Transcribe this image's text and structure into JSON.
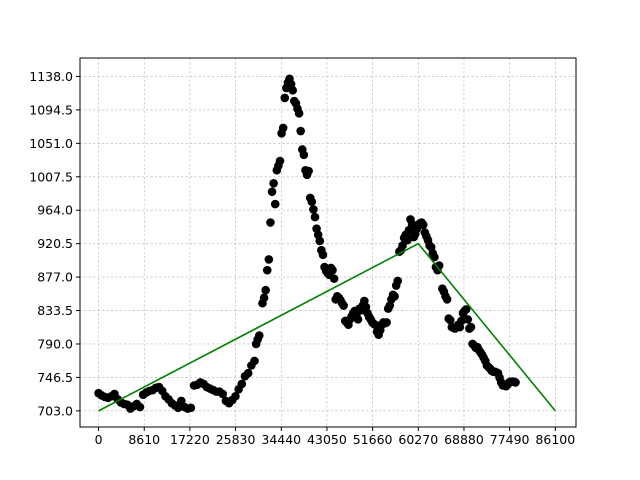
{
  "chart_data": {
    "type": "scatter",
    "title": "",
    "xlabel": "",
    "ylabel": "",
    "xlim": [
      -3500,
      90000
    ],
    "ylim": [
      682,
      1162
    ],
    "grid": true,
    "x_ticks": [
      0,
      8610,
      17220,
      25830,
      34440,
      43050,
      51660,
      60270,
      68880,
      77490,
      86100
    ],
    "x_tick_labels": [
      "0",
      "8610",
      "17220",
      "25830",
      "34440",
      "43050",
      "51660",
      "60270",
      "68880",
      "77490",
      "86100"
    ],
    "y_ticks": [
      703.0,
      746.5,
      790.0,
      833.5,
      877.0,
      920.5,
      964.0,
      1007.5,
      1051.0,
      1094.5,
      1138.0
    ],
    "y_tick_labels": [
      "703.0",
      "746.5",
      "790.0",
      "833.5",
      "877.0",
      "920.5",
      "964.0",
      "1007.5",
      "1051.0",
      "1094.5",
      "1138.0"
    ],
    "colors": {
      "points": "#000000",
      "trend": "#008000",
      "grid": "#b0b0b0"
    },
    "series": [
      {
        "type": "scatter",
        "points": [
          [
            0,
            726
          ],
          [
            600,
            723
          ],
          [
            1200,
            721
          ],
          [
            1800,
            720
          ],
          [
            2400,
            722
          ],
          [
            3000,
            725
          ],
          [
            3600,
            718
          ],
          [
            4200,
            714
          ],
          [
            4800,
            712
          ],
          [
            5400,
            711
          ],
          [
            6000,
            706
          ],
          [
            6600,
            709
          ],
          [
            7200,
            712
          ],
          [
            7800,
            708
          ],
          [
            8400,
            724
          ],
          [
            9000,
            727
          ],
          [
            9600,
            729
          ],
          [
            10200,
            730
          ],
          [
            10800,
            733
          ],
          [
            11400,
            734
          ],
          [
            12000,
            729
          ],
          [
            12600,
            722
          ],
          [
            13200,
            718
          ],
          [
            13800,
            713
          ],
          [
            14400,
            710
          ],
          [
            15000,
            707
          ],
          [
            15600,
            716
          ],
          [
            16200,
            708
          ],
          [
            16800,
            706
          ],
          [
            17400,
            707
          ],
          [
            18000,
            736
          ],
          [
            18600,
            737
          ],
          [
            19200,
            740
          ],
          [
            19800,
            738
          ],
          [
            20400,
            734
          ],
          [
            21000,
            732
          ],
          [
            21600,
            730
          ],
          [
            22200,
            728
          ],
          [
            22800,
            728
          ],
          [
            23400,
            725
          ],
          [
            24000,
            716
          ],
          [
            24600,
            713
          ],
          [
            25200,
            717
          ],
          [
            25800,
            722
          ],
          [
            26400,
            731
          ],
          [
            27000,
            738
          ],
          [
            27600,
            748
          ],
          [
            28200,
            752
          ],
          [
            28800,
            762
          ],
          [
            29400,
            768
          ],
          [
            29700,
            790
          ],
          [
            30000,
            796
          ],
          [
            30300,
            801
          ],
          [
            30900,
            843
          ],
          [
            31200,
            850
          ],
          [
            31500,
            860
          ],
          [
            31800,
            886
          ],
          [
            32100,
            900
          ],
          [
            32400,
            948
          ],
          [
            32700,
            988
          ],
          [
            33000,
            999
          ],
          [
            33300,
            972
          ],
          [
            33600,
            1016
          ],
          [
            33900,
            1022
          ],
          [
            34200,
            1028
          ],
          [
            34500,
            1064
          ],
          [
            34800,
            1071
          ],
          [
            35100,
            1110
          ],
          [
            35400,
            1123
          ],
          [
            35700,
            1130
          ],
          [
            36000,
            1135
          ],
          [
            36300,
            1128
          ],
          [
            36600,
            1120
          ],
          [
            36900,
            1106
          ],
          [
            37200,
            1103
          ],
          [
            37500,
            1096
          ],
          [
            37800,
            1090
          ],
          [
            38100,
            1067
          ],
          [
            38400,
            1043
          ],
          [
            38700,
            1036
          ],
          [
            39000,
            1016
          ],
          [
            39300,
            1010
          ],
          [
            39600,
            1015
          ],
          [
            39900,
            980
          ],
          [
            40200,
            975
          ],
          [
            40500,
            965
          ],
          [
            40800,
            955
          ],
          [
            41100,
            940
          ],
          [
            41400,
            932
          ],
          [
            41700,
            924
          ],
          [
            42000,
            912
          ],
          [
            42300,
            906
          ],
          [
            42600,
            890
          ],
          [
            42900,
            885
          ],
          [
            43200,
            882
          ],
          [
            43500,
            880
          ],
          [
            43800,
            889
          ],
          [
            44100,
            886
          ],
          [
            44400,
            875
          ],
          [
            44700,
            848
          ],
          [
            45000,
            852
          ],
          [
            45300,
            850
          ],
          [
            45600,
            847
          ],
          [
            45900,
            843
          ],
          [
            46200,
            840
          ],
          [
            46500,
            820
          ],
          [
            46800,
            818
          ],
          [
            47100,
            815
          ],
          [
            47400,
            822
          ],
          [
            47700,
            826
          ],
          [
            48000,
            830
          ],
          [
            48300,
            833
          ],
          [
            48600,
            828
          ],
          [
            48900,
            822
          ],
          [
            49200,
            836
          ],
          [
            49500,
            834
          ],
          [
            49800,
            840
          ],
          [
            50100,
            846
          ],
          [
            50400,
            838
          ],
          [
            50700,
            830
          ],
          [
            51000,
            825
          ],
          [
            51300,
            822
          ],
          [
            51600,
            818
          ],
          [
            51900,
            816
          ],
          [
            52200,
            815
          ],
          [
            52500,
            806
          ],
          [
            52800,
            802
          ],
          [
            53100,
            808
          ],
          [
            53400,
            815
          ],
          [
            53700,
            818
          ],
          [
            54000,
            817
          ],
          [
            54300,
            818
          ],
          [
            54600,
            836
          ],
          [
            54900,
            840
          ],
          [
            55200,
            848
          ],
          [
            55500,
            854
          ],
          [
            55800,
            852
          ],
          [
            56100,
            866
          ],
          [
            56400,
            872
          ],
          [
            56700,
            910
          ],
          [
            57000,
            912
          ],
          [
            57300,
            918
          ],
          [
            57600,
            928
          ],
          [
            57900,
            932
          ],
          [
            58200,
            925
          ],
          [
            58500,
            938
          ],
          [
            58800,
            952
          ],
          [
            59100,
            946
          ],
          [
            59400,
            929
          ],
          [
            59700,
            933
          ],
          [
            60000,
            940
          ],
          [
            60300,
            945
          ],
          [
            60600,
            947
          ],
          [
            60900,
            948
          ],
          [
            61200,
            945
          ],
          [
            61500,
            935
          ],
          [
            61800,
            930
          ],
          [
            62100,
            925
          ],
          [
            62400,
            918
          ],
          [
            62700,
            916
          ],
          [
            63000,
            908
          ],
          [
            63300,
            903
          ],
          [
            63600,
            890
          ],
          [
            63900,
            886
          ],
          [
            64200,
            892
          ],
          [
            64800,
            862
          ],
          [
            65100,
            858
          ],
          [
            65400,
            852
          ],
          [
            65700,
            848
          ],
          [
            66000,
            823
          ],
          [
            66300,
            821
          ],
          [
            66600,
            812
          ],
          [
            66900,
            811
          ],
          [
            67200,
            810
          ],
          [
            67500,
            812
          ],
          [
            67800,
            815
          ],
          [
            68100,
            812
          ],
          [
            68400,
            820
          ],
          [
            68700,
            830
          ],
          [
            69000,
            833
          ],
          [
            69300,
            835
          ],
          [
            69600,
            822
          ],
          [
            69900,
            810
          ],
          [
            70200,
            812
          ],
          [
            70500,
            790
          ],
          [
            70800,
            788
          ],
          [
            71100,
            785
          ],
          [
            71400,
            786
          ],
          [
            71700,
            782
          ],
          [
            72000,
            779
          ],
          [
            72300,
            776
          ],
          [
            72600,
            772
          ],
          [
            72900,
            768
          ],
          [
            73200,
            762
          ],
          [
            73500,
            760
          ],
          [
            73800,
            758
          ],
          [
            74100,
            755
          ],
          [
            74400,
            754
          ],
          [
            74700,
            754
          ],
          [
            75000,
            753
          ],
          [
            75300,
            752
          ],
          [
            75600,
            746
          ],
          [
            75900,
            740
          ],
          [
            76200,
            736
          ],
          [
            76500,
            737
          ],
          [
            76800,
            735
          ],
          [
            77100,
            737
          ],
          [
            77400,
            740
          ],
          [
            77700,
            741
          ],
          [
            78000,
            741
          ],
          [
            78300,
            741
          ],
          [
            78600,
            740
          ]
        ]
      },
      {
        "type": "line",
        "points": [
          [
            0,
            703
          ],
          [
            60270,
            920.5
          ],
          [
            86100,
            703
          ]
        ]
      }
    ]
  }
}
